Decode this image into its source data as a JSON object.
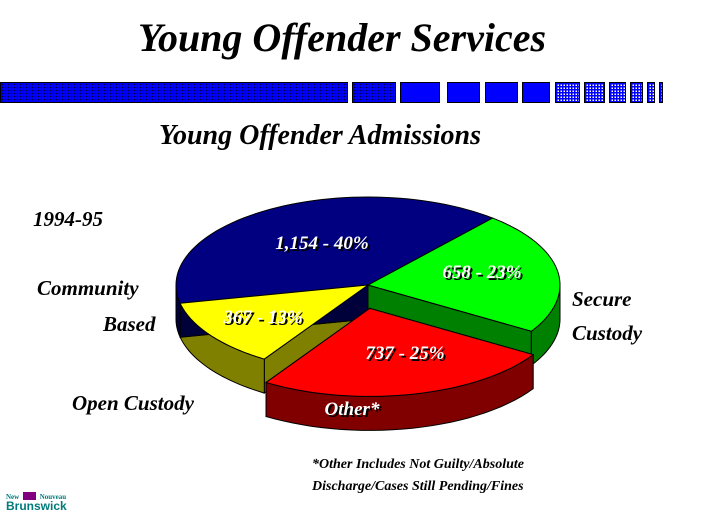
{
  "title": "Young Offender Services",
  "subtitle": "Young Offender Admissions",
  "year_label": "1994-95",
  "footnote": {
    "line1": "*Other Includes Not Guilty/Absolute",
    "line2": "Discharge/Cases Still Pending/Fines"
  },
  "logo": {
    "left": "New",
    "right": "Nouveau",
    "name": "Brunswick",
    "colors": {
      "text": "#007a7a",
      "emblem": "#800080"
    }
  },
  "chart_data": {
    "type": "pie",
    "title": "Young Offender Admissions",
    "subtitle": "1994-95",
    "slices": [
      {
        "name": "Community Based",
        "value": 1154,
        "percent": 40,
        "label": "1,154 - 40%",
        "color": "#000080",
        "side": "#00003a"
      },
      {
        "name": "Secure Custody",
        "value": 658,
        "percent": 23,
        "label": "658 - 23%",
        "color": "#00ff00",
        "side": "#008000"
      },
      {
        "name": "Other*",
        "value": 737,
        "percent": 25,
        "label": "737 - 25%",
        "color": "#ff0000",
        "side": "#800000",
        "exploded": true
      },
      {
        "name": "Open Custody",
        "value": 367,
        "percent": 13,
        "label": "367 - 13%",
        "color": "#ffff00",
        "side": "#808000"
      }
    ],
    "legend_labels": {
      "community_line1": "Community",
      "community_line2": "Based",
      "secure_line1": "Secure",
      "secure_line2": "Custody",
      "open": "Open Custody",
      "other": "Other*"
    }
  }
}
